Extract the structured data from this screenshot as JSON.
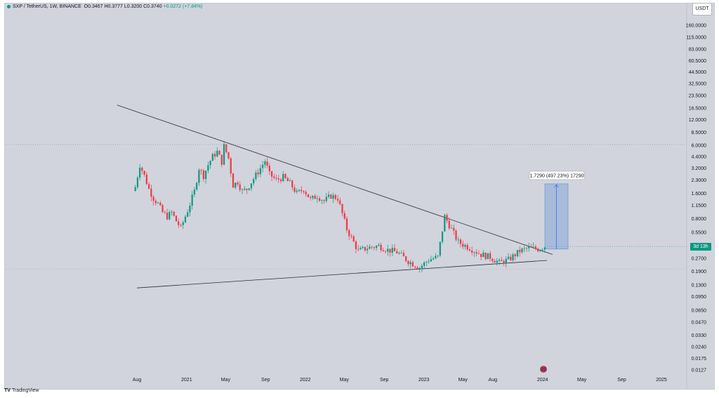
{
  "header": {
    "symbol": "SXP / TetherUS, 1W, BINANCE",
    "ohlc": "O0.3467 H0.3777 L0.3200 C0.3740",
    "change": "+0.0272 (+7.84%)"
  },
  "currency": "USDT",
  "price_badge": "3d 13h",
  "brand": "TradingView",
  "measure_label": "1.7290 (497.23%) 17290",
  "colors": {
    "background": "#d1d4dc",
    "up": "#089981",
    "down": "#f23645",
    "measure": "#5b8bd6"
  },
  "chart_data": {
    "type": "candlestick",
    "scale": "log",
    "x_axis": {
      "ticks": [
        "Aug",
        "2021",
        "May",
        "Sep",
        "2022",
        "May",
        "Sep",
        "2023",
        "May",
        "Aug",
        "2024",
        "May",
        "Sep",
        "2025"
      ],
      "tick_dates": [
        "2020-08-01",
        "2021-01-01",
        "2021-05-01",
        "2021-09-01",
        "2022-01-01",
        "2022-05-01",
        "2022-09-01",
        "2023-01-01",
        "2023-05-01",
        "2023-08-01",
        "2024-01-01",
        "2024-05-01",
        "2024-09-01",
        "2025-01-01"
      ]
    },
    "y_axis": {
      "ticks": [
        "160.0000",
        "115.0000",
        "83.0000",
        "60.5000",
        "44.5000",
        "32.5000",
        "23.5000",
        "16.5000",
        "12.0000",
        "8.5000",
        "6.0000",
        "4.4000",
        "3.2000",
        "2.3000",
        "1.6000",
        "1.1500",
        "0.8000",
        "0.5500",
        "0.3800",
        "0.2700",
        "0.1900",
        "0.1300",
        "0.0950",
        "0.0650",
        "0.0470",
        "0.0330",
        "0.0240",
        "0.0175",
        "0.0127"
      ],
      "tick_values": [
        160,
        115,
        83,
        60.5,
        44.5,
        32.5,
        23.5,
        16.5,
        12,
        8.5,
        6,
        4.4,
        3.2,
        2.3,
        1.6,
        1.15,
        0.8,
        0.55,
        0.38,
        0.27,
        0.19,
        0.13,
        0.095,
        0.065,
        0.047,
        0.033,
        0.024,
        0.0175,
        0.0127
      ],
      "range": [
        0.0105,
        230
      ]
    },
    "series_weekly_close": [
      [
        "2020-07-27",
        1.9
      ],
      [
        "2020-08-10",
        3.5
      ],
      [
        "2020-08-24",
        2.6
      ],
      [
        "2020-09-07",
        1.8
      ],
      [
        "2020-09-21",
        1.4
      ],
      [
        "2020-10-05",
        1.2
      ],
      [
        "2020-10-19",
        0.95
      ],
      [
        "2020-11-02",
        0.85
      ],
      [
        "2020-11-16",
        0.95
      ],
      [
        "2020-11-30",
        0.75
      ],
      [
        "2020-12-14",
        0.62
      ],
      [
        "2021-01-04",
        1.0
      ],
      [
        "2021-01-25",
        1.7
      ],
      [
        "2021-02-08",
        3.2
      ],
      [
        "2021-02-22",
        2.6
      ],
      [
        "2021-03-08",
        3.5
      ],
      [
        "2021-03-22",
        4.4
      ],
      [
        "2021-04-05",
        5.0
      ],
      [
        "2021-04-19",
        3.8
      ],
      [
        "2021-04-26",
        5.8
      ],
      [
        "2021-05-10",
        4.2
      ],
      [
        "2021-05-24",
        2.0
      ],
      [
        "2021-06-07",
        2.2
      ],
      [
        "2021-06-21",
        1.7
      ],
      [
        "2021-07-05",
        1.8
      ],
      [
        "2021-07-26",
        2.4
      ],
      [
        "2021-08-16",
        3.2
      ],
      [
        "2021-08-30",
        3.9
      ],
      [
        "2021-09-13",
        2.7
      ],
      [
        "2021-10-04",
        2.3
      ],
      [
        "2021-10-25",
        2.5
      ],
      [
        "2021-11-15",
        2.1
      ],
      [
        "2021-12-06",
        1.6
      ],
      [
        "2021-12-27",
        1.8
      ],
      [
        "2022-01-17",
        1.35
      ],
      [
        "2022-02-07",
        1.5
      ],
      [
        "2022-02-28",
        1.3
      ],
      [
        "2022-03-21",
        1.5
      ],
      [
        "2022-04-11",
        1.4
      ],
      [
        "2022-05-09",
        0.6
      ],
      [
        "2022-06-13",
        0.33
      ],
      [
        "2022-07-11",
        0.36
      ],
      [
        "2022-08-15",
        0.38
      ],
      [
        "2022-09-12",
        0.34
      ],
      [
        "2022-10-10",
        0.32
      ],
      [
        "2022-11-14",
        0.25
      ],
      [
        "2022-12-19",
        0.21
      ],
      [
        "2023-01-16",
        0.26
      ],
      [
        "2023-02-13",
        0.28
      ],
      [
        "2023-03-06",
        0.85
      ],
      [
        "2023-03-27",
        0.6
      ],
      [
        "2023-04-17",
        0.42
      ],
      [
        "2023-05-22",
        0.36
      ],
      [
        "2023-06-26",
        0.3
      ],
      [
        "2023-07-24",
        0.28
      ],
      [
        "2023-08-21",
        0.24
      ],
      [
        "2023-09-18",
        0.26
      ],
      [
        "2023-10-23",
        0.33
      ],
      [
        "2023-11-20",
        0.36
      ],
      [
        "2023-12-18",
        0.35
      ],
      [
        "2024-01-08",
        0.374
      ]
    ],
    "trendlines": [
      {
        "name": "descending resistance",
        "from": [
          "2020-06-01",
          18.0
        ],
        "to": [
          "2024-02-01",
          0.3
        ]
      },
      {
        "name": "ascending support",
        "from": [
          "2020-08-01",
          0.12
        ],
        "to": [
          "2024-01-15",
          0.255
        ]
      }
    ],
    "horizontal_line": {
      "value": 6.1
    },
    "price_range_measure": {
      "from": 0.348,
      "to": 2.077,
      "change": 1.729,
      "percent": 497.23
    }
  }
}
